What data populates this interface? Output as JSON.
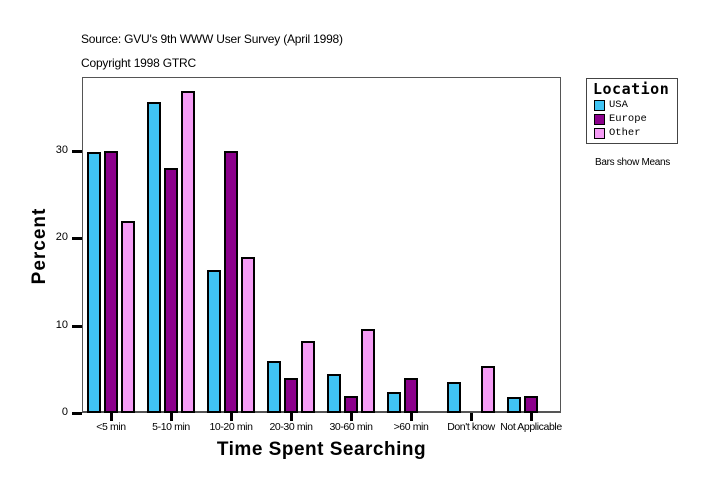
{
  "header": {
    "source": "Source: GVU's 9th WWW User Survey (April 1998)",
    "copyright": "Copyright 1998 GTRC"
  },
  "legend": {
    "title": "Location",
    "items": [
      {
        "label": "USA",
        "color": "#40c4f4"
      },
      {
        "label": "Europe",
        "color": "#8b008b"
      },
      {
        "label": "Other",
        "color": "#f59cf5"
      }
    ],
    "note": "Bars show Means"
  },
  "chart_data": {
    "type": "bar",
    "title": "",
    "xlabel": "Time Spent Searching",
    "ylabel": "Percent",
    "ylim": [
      0,
      38
    ],
    "yticks": [
      0,
      10,
      20,
      30
    ],
    "grid": false,
    "legend_position": "right",
    "categories": [
      "<5 min",
      "5-10 min",
      "10-20 min",
      "20-30 min",
      "30-60 min",
      ">60 min",
      "Don't know",
      "Not Applicable"
    ],
    "series": [
      {
        "name": "USA",
        "color": "#40c4f4",
        "values": [
          29.8,
          35.5,
          16.3,
          5.9,
          4.5,
          2.4,
          3.5,
          1.8
        ]
      },
      {
        "name": "Europe",
        "color": "#8b008b",
        "values": [
          29.9,
          28.0,
          29.9,
          4.0,
          2.0,
          4.0,
          0,
          2.0
        ]
      },
      {
        "name": "Other",
        "color": "#f59cf5",
        "values": [
          21.9,
          36.8,
          17.8,
          8.2,
          9.6,
          0,
          5.4,
          0
        ]
      }
    ]
  }
}
